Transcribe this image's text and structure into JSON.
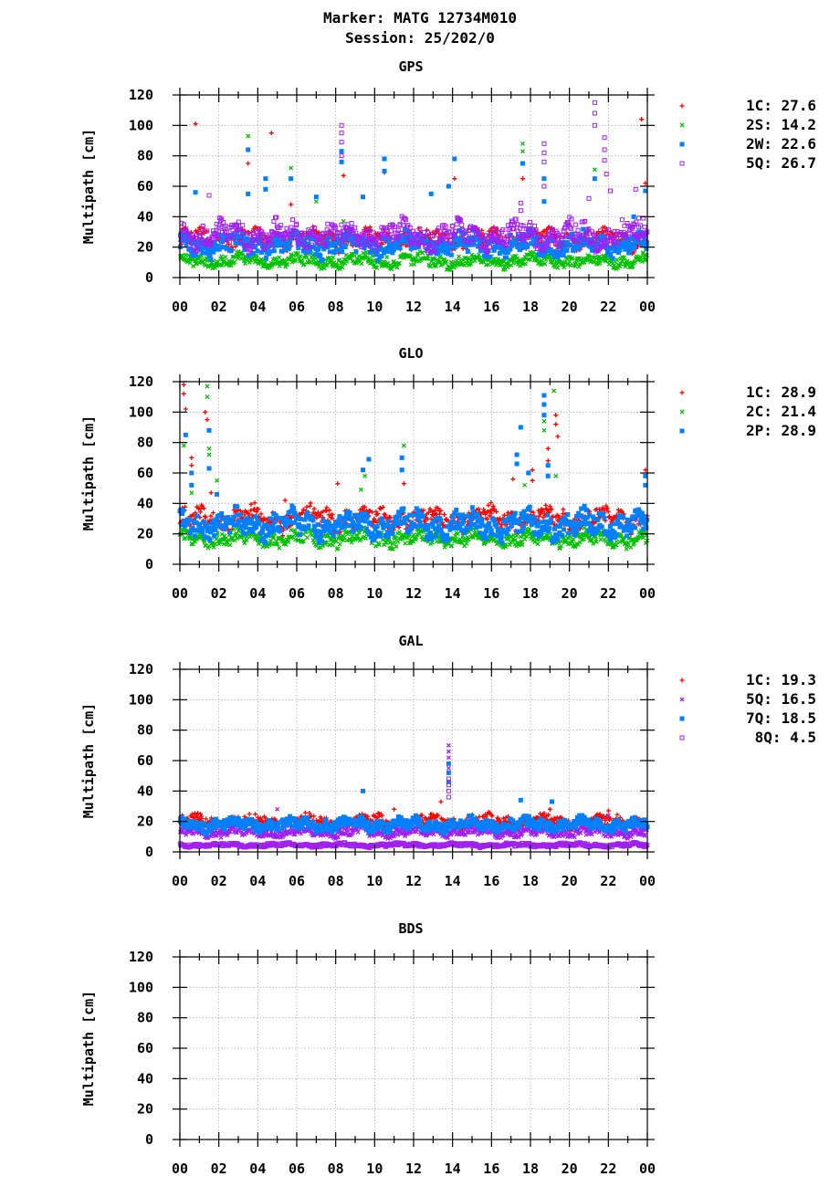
{
  "header": {
    "marker": "Marker: MATG 12734M010",
    "session": "Session: 25/202/0"
  },
  "axes": {
    "ylabel": "Multipath [cm]",
    "xticks": [
      "00",
      "02",
      "04",
      "06",
      "08",
      "10",
      "12",
      "14",
      "16",
      "18",
      "20",
      "22",
      "00"
    ],
    "yticks": [
      "0",
      "20",
      "40",
      "60",
      "80",
      "100",
      "120"
    ],
    "xlim": [
      0,
      24
    ],
    "ylim": [
      0,
      120
    ]
  },
  "colors": {
    "1C": "#ff0000",
    "2S": "#00c000",
    "2C": "#00c000",
    "5Q": "#a020f0",
    "2W": "#0080ff",
    "2P": "#0080ff",
    "7Q": "#0080ff",
    "8Q": "#a020f0"
  },
  "chart_data": [
    {
      "type": "scatter",
      "title": "GPS",
      "xlabel": "",
      "ylabel": "Multipath [cm]",
      "xlim": [
        0,
        24
      ],
      "ylim": [
        0,
        120
      ],
      "grid": true,
      "legend_position": "right",
      "series": [
        {
          "code": "1C",
          "name": "1C:",
          "value": "27.6",
          "marker": "plus",
          "color": "#ff0000",
          "baseline": 25,
          "spread": 6,
          "spikes": [
            [
              0.8,
              101
            ],
            [
              3.5,
              75
            ],
            [
              4.7,
              95
            ],
            [
              5.7,
              48
            ],
            [
              8.4,
              67
            ],
            [
              10.5,
              69
            ],
            [
              14.1,
              65
            ],
            [
              17.6,
              65
            ],
            [
              23.7,
              104
            ],
            [
              23.9,
              62
            ]
          ]
        },
        {
          "code": "2S",
          "name": "2S:",
          "value": "14.2",
          "marker": "x",
          "color": "#00c000",
          "baseline": 11,
          "spread": 4,
          "spikes": [
            [
              3.5,
              93
            ],
            [
              5.7,
              72
            ],
            [
              7.0,
              50
            ],
            [
              8.4,
              37
            ],
            [
              17.6,
              88
            ],
            [
              17.6,
              83
            ],
            [
              21.3,
              71
            ]
          ]
        },
        {
          "code": "2W",
          "name": "2W:",
          "value": "22.6",
          "marker": "square",
          "color": "#0080ff",
          "baseline": 22,
          "spread": 7,
          "spikes": [
            [
              0.8,
              56
            ],
            [
              3.5,
              84
            ],
            [
              3.5,
              55
            ],
            [
              4.4,
              65
            ],
            [
              4.4,
              58
            ],
            [
              5.7,
              65
            ],
            [
              7.0,
              53
            ],
            [
              8.3,
              83
            ],
            [
              8.3,
              76
            ],
            [
              9.4,
              53
            ],
            [
              10.5,
              78
            ],
            [
              10.5,
              70
            ],
            [
              12.9,
              55
            ],
            [
              13.8,
              60
            ],
            [
              14.1,
              78
            ],
            [
              17.6,
              75
            ],
            [
              18.7,
              65
            ],
            [
              18.7,
              50
            ],
            [
              21.3,
              65
            ],
            [
              23.3,
              40
            ],
            [
              23.9,
              57
            ]
          ]
        },
        {
          "code": "5Q",
          "name": "5Q:",
          "value": "26.7",
          "marker": "opensquare",
          "color": "#a020f0",
          "baseline": 28,
          "spread": 8,
          "spikes": [
            [
              1.5,
              54
            ],
            [
              8.3,
              100
            ],
            [
              8.3,
              95
            ],
            [
              8.3,
              89
            ],
            [
              8.3,
              80
            ],
            [
              17.5,
              49
            ],
            [
              17.5,
              44
            ],
            [
              18.7,
              88
            ],
            [
              18.7,
              82
            ],
            [
              18.7,
              76
            ],
            [
              18.7,
              60
            ],
            [
              21.0,
              52
            ],
            [
              21.3,
              115
            ],
            [
              21.3,
              108
            ],
            [
              21.3,
              100
            ],
            [
              21.8,
              92
            ],
            [
              21.8,
              84
            ],
            [
              21.8,
              77
            ],
            [
              21.9,
              68
            ],
            [
              22.1,
              57
            ],
            [
              23.4,
              58
            ],
            [
              23.8,
              39
            ]
          ]
        }
      ]
    },
    {
      "type": "scatter",
      "title": "GLO",
      "xlabel": "",
      "ylabel": "Multipath [cm]",
      "xlim": [
        0,
        24
      ],
      "ylim": [
        0,
        120
      ],
      "grid": true,
      "legend_position": "right",
      "series": [
        {
          "code": "1C",
          "name": "1C:",
          "value": "28.9",
          "marker": "plus",
          "color": "#ff0000",
          "baseline": 30,
          "spread": 7,
          "spikes": [
            [
              0.2,
              118
            ],
            [
              0.2,
              112
            ],
            [
              0.3,
              102
            ],
            [
              0.6,
              70
            ],
            [
              0.6,
              65
            ],
            [
              1.3,
              100
            ],
            [
              1.4,
              95
            ],
            [
              1.6,
              47
            ],
            [
              5.4,
              42
            ],
            [
              8.1,
              53
            ],
            [
              11.5,
              53
            ],
            [
              17.1,
              56
            ],
            [
              18.1,
              62
            ],
            [
              18.1,
              55
            ],
            [
              18.9,
              76
            ],
            [
              18.9,
              68
            ],
            [
              19.3,
              98
            ],
            [
              19.3,
              92
            ],
            [
              19.4,
              84
            ],
            [
              23.9,
              62
            ]
          ]
        },
        {
          "code": "2C",
          "name": "2C:",
          "value": "21.4",
          "marker": "x",
          "color": "#00c000",
          "baseline": 17,
          "spread": 5,
          "spikes": [
            [
              0.2,
              78
            ],
            [
              1.4,
              117
            ],
            [
              1.4,
              110
            ],
            [
              1.5,
              76
            ],
            [
              1.5,
              72
            ],
            [
              0.6,
              47
            ],
            [
              1.9,
              55
            ],
            [
              9.3,
              49
            ],
            [
              9.5,
              58
            ],
            [
              11.5,
              78
            ],
            [
              17.7,
              52
            ],
            [
              18.7,
              94
            ],
            [
              18.7,
              88
            ],
            [
              19.2,
              114
            ],
            [
              19.3,
              58
            ]
          ]
        },
        {
          "code": "2P",
          "name": "2P:",
          "value": "28.9",
          "marker": "square",
          "color": "#0080ff",
          "baseline": 26,
          "spread": 8,
          "spikes": [
            [
              0.3,
              85
            ],
            [
              0.6,
              60
            ],
            [
              0.6,
              52
            ],
            [
              1.5,
              88
            ],
            [
              1.5,
              63
            ],
            [
              1.9,
              46
            ],
            [
              9.4,
              62
            ],
            [
              9.7,
              69
            ],
            [
              11.4,
              70
            ],
            [
              11.4,
              62
            ],
            [
              17.3,
              72
            ],
            [
              17.3,
              66
            ],
            [
              17.5,
              90
            ],
            [
              17.9,
              60
            ],
            [
              18.7,
              111
            ],
            [
              18.7,
              105
            ],
            [
              18.7,
              98
            ],
            [
              18.9,
              65
            ],
            [
              18.9,
              58
            ],
            [
              23.9,
              58
            ],
            [
              23.9,
              52
            ]
          ]
        }
      ]
    },
    {
      "type": "scatter",
      "title": "GAL",
      "xlabel": "",
      "ylabel": "Multipath [cm]",
      "xlim": [
        0,
        24
      ],
      "ylim": [
        0,
        120
      ],
      "grid": true,
      "legend_position": "right",
      "series": [
        {
          "code": "1C",
          "name": "1C:",
          "value": "19.3",
          "marker": "plus",
          "color": "#ff0000",
          "baseline": 20,
          "spread": 4,
          "spikes": [
            [
              13.4,
              33
            ],
            [
              11.0,
              28
            ],
            [
              19.0,
              28
            ],
            [
              22.0,
              27
            ]
          ]
        },
        {
          "code": "5Q",
          "name": "5Q:",
          "value": "16.5",
          "marker": "x",
          "color": "#00c000",
          "baseline": 13,
          "spread": 3,
          "spikes": [
            [
              13.8,
              70
            ],
            [
              13.8,
              66
            ],
            [
              13.8,
              62
            ],
            [
              13.8,
              55
            ],
            [
              5.0,
              28
            ],
            [
              22.0,
              24
            ]
          ]
        },
        {
          "code": "7Q",
          "name": "7Q:",
          "value": "18.5",
          "marker": "square",
          "color": "#0080ff",
          "baseline": 18,
          "spread": 4,
          "spikes": [
            [
              9.4,
              40
            ],
            [
              13.8,
              58
            ],
            [
              13.8,
              52
            ],
            [
              13.8,
              46
            ],
            [
              17.5,
              34
            ],
            [
              19.1,
              33
            ]
          ]
        },
        {
          "code": "8Q",
          "name": "8Q:",
          "value": "4.5",
          "marker": "opensquare",
          "color": "#a020f0",
          "baseline": 4.5,
          "spread": 1.2,
          "spikes": [
            [
              13.8,
              48
            ],
            [
              13.8,
              44
            ],
            [
              13.8,
              40
            ],
            [
              13.8,
              36
            ]
          ]
        }
      ]
    },
    {
      "type": "scatter",
      "title": "BDS",
      "xlabel": "",
      "ylabel": "Multipath [cm]",
      "xlim": [
        0,
        24
      ],
      "ylim": [
        0,
        120
      ],
      "grid": true,
      "legend_position": "right",
      "series": []
    }
  ]
}
